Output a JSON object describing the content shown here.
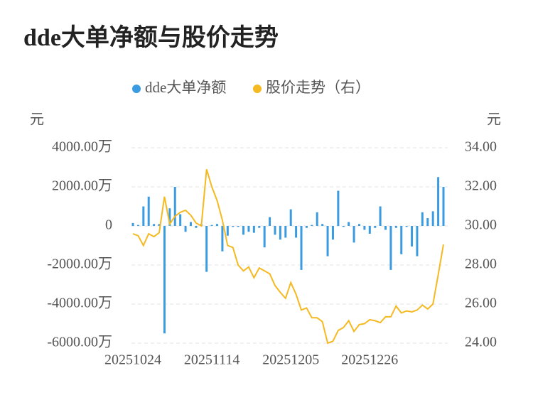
{
  "chart_data": {
    "type": "bar",
    "title": "dde大单净额与股价走势",
    "y_unit_label": "元",
    "y2_unit_label": "元",
    "categories": [
      "20251024",
      null,
      null,
      null,
      null,
      null,
      null,
      null,
      null,
      null,
      null,
      null,
      null,
      null,
      null,
      "20251114",
      null,
      null,
      null,
      null,
      null,
      null,
      null,
      null,
      null,
      null,
      null,
      null,
      null,
      null,
      "20251205",
      null,
      null,
      null,
      null,
      null,
      null,
      null,
      null,
      null,
      null,
      null,
      null,
      null,
      null,
      "20251226",
      null,
      null,
      null,
      null,
      null,
      null,
      null,
      null,
      null,
      null,
      null,
      null,
      null,
      null
    ],
    "series": [
      {
        "name": "dde大单净额",
        "type": "bar",
        "color": "#3b9be0",
        "values": [
          150,
          50,
          1000,
          1500,
          100,
          100,
          -5500,
          900,
          2000,
          600,
          -300,
          200,
          -100,
          100,
          -2350,
          50,
          100,
          -1300,
          -500,
          -50,
          -50,
          -450,
          -300,
          -350,
          -100,
          -1100,
          450,
          -450,
          -700,
          -600,
          850,
          -600,
          -2250,
          -100,
          50,
          700,
          100,
          -1550,
          -700,
          1800,
          -50,
          200,
          -850,
          100,
          -200,
          -400,
          -100,
          1000,
          -200,
          -2250,
          -100,
          -1450,
          -50,
          -1050,
          -1550,
          700,
          400,
          750,
          2500,
          2000
        ]
      },
      {
        "name": "股价走势（右）",
        "type": "line",
        "color": "#f5b921",
        "axis": "y2",
        "values": [
          29.6,
          29.5,
          29.0,
          29.6,
          29.45,
          29.65,
          31.5,
          30.1,
          30.5,
          30.7,
          30.8,
          30.55,
          30.15,
          30.0,
          32.9,
          32.0,
          31.3,
          30.3,
          29.0,
          28.9,
          28.0,
          27.7,
          27.9,
          27.35,
          27.85,
          27.7,
          27.55,
          26.95,
          26.6,
          26.3,
          27.1,
          26.5,
          25.7,
          25.8,
          25.3,
          25.3,
          25.1,
          24.0,
          24.1,
          24.65,
          24.8,
          25.15,
          24.6,
          24.95,
          25.0,
          25.2,
          25.15,
          25.05,
          25.35,
          25.35,
          25.9,
          25.55,
          25.65,
          25.6,
          25.7,
          25.95,
          25.75,
          26.0,
          27.5,
          29.05
        ]
      }
    ],
    "ylim": [
      -6000,
      4000
    ],
    "yticks": [
      {
        "value": -6000,
        "label": "-6000.00万"
      },
      {
        "value": -4000,
        "label": "-4000.00万"
      },
      {
        "value": -2000,
        "label": "-2000.00万"
      },
      0,
      {
        "value": 2000,
        "label": "2000.00万"
      },
      {
        "value": 4000,
        "label": "4000.00万"
      }
    ],
    "y2lim": [
      24,
      34
    ],
    "y2ticks": [
      {
        "value": 24,
        "label": "24.00"
      },
      {
        "value": 26,
        "label": "26.00"
      },
      {
        "value": 28,
        "label": "28.00"
      },
      {
        "value": 30,
        "label": "30.00"
      },
      {
        "value": 32,
        "label": "32.00"
      },
      {
        "value": 34,
        "label": "34.00"
      }
    ],
    "grid": true,
    "legend": "top"
  }
}
